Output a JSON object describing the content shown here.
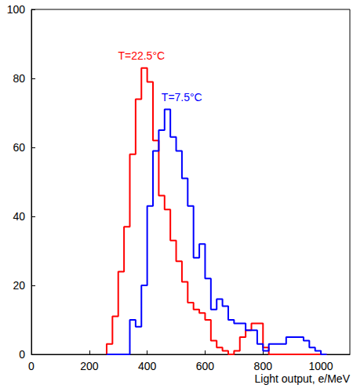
{
  "chart_data": {
    "type": "histogram",
    "x_label": "Light output, e/MeV",
    "bins": [
      260,
      280,
      300,
      320,
      340,
      360,
      380,
      400,
      420,
      440,
      460,
      480,
      500,
      520,
      540,
      560,
      580,
      600,
      620,
      640,
      660,
      680,
      700,
      720,
      740,
      760,
      780,
      800,
      820,
      840,
      860,
      880,
      900,
      920,
      940,
      960,
      980,
      1000,
      1020
    ],
    "series": [
      {
        "name": "T=22.5°C",
        "color": "#ff0000",
        "values": [
          3,
          11,
          24,
          37,
          58,
          74,
          83,
          79,
          62,
          46,
          42,
          33,
          27,
          21,
          15,
          13,
          12,
          10,
          4,
          2,
          1,
          0,
          1,
          5,
          7,
          9,
          9,
          2,
          0,
          0,
          0,
          0,
          0,
          0,
          0,
          0,
          0,
          0
        ]
      },
      {
        "name": "T=7.5°C",
        "color": "#0000ff",
        "values": [
          0,
          0,
          0,
          0,
          10,
          8,
          20,
          43,
          59,
          65,
          71,
          63,
          59,
          51,
          43,
          28,
          32,
          22,
          13,
          16,
          14,
          10,
          9,
          9,
          7,
          7,
          3,
          1,
          3,
          3,
          3,
          5,
          5,
          5,
          4,
          2,
          1,
          0
        ]
      }
    ],
    "xlim": [
      0,
      1100
    ],
    "xticks": [
      0,
      200,
      400,
      600,
      800,
      1000
    ],
    "ylim": [
      0,
      100
    ],
    "yticks": [
      0,
      20,
      40,
      60,
      80,
      100
    ],
    "grid": false
  }
}
